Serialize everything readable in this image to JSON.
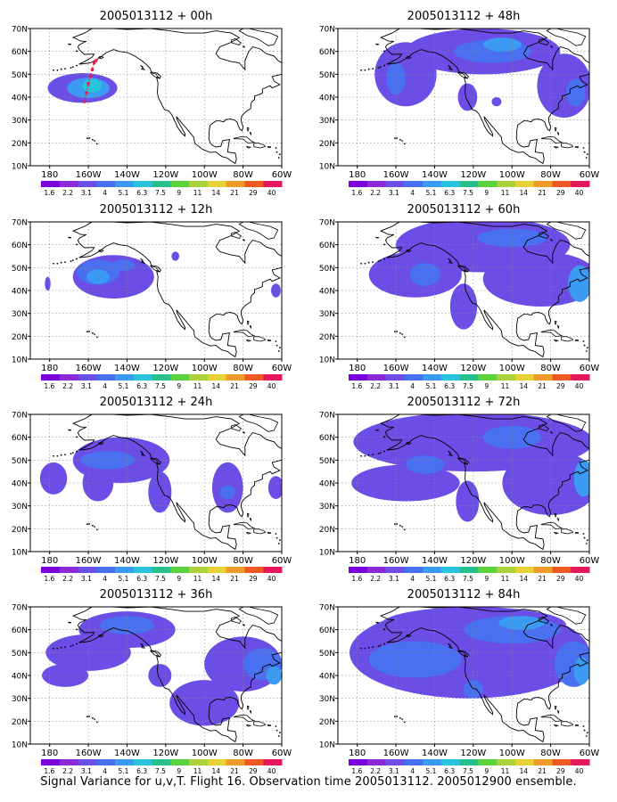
{
  "chart_data": [
    {
      "type": "heatmap",
      "title": "2005013112 + 00h",
      "lat_ticks": [
        "70N",
        "60N",
        "50N",
        "40N",
        "30N",
        "20N",
        "10N"
      ],
      "lon_ticks": [
        "180",
        "160W",
        "140W",
        "120W",
        "100W",
        "80W",
        "60W"
      ],
      "colorbar": [
        "1.6",
        "2.2",
        "3.1",
        "4",
        "5.1",
        "6.3",
        "7.5",
        "9",
        "11",
        "14",
        "21",
        "29",
        "40"
      ],
      "blobs": [
        {
          "lon": -163,
          "lat": 44,
          "rlon": 18,
          "rlat": 6.5,
          "level": 2
        },
        {
          "lon": -160,
          "lat": 44,
          "rlon": 11,
          "rlat": 4.5,
          "level": 4
        },
        {
          "lon": -158,
          "lat": 45,
          "rlon": 5,
          "rlat": 3,
          "level": 5
        }
      ],
      "obs_track": [
        [
          -162,
          38
        ],
        [
          -161,
          42
        ],
        [
          -160,
          46
        ],
        [
          -159,
          49
        ],
        [
          -158,
          52
        ],
        [
          -157,
          55
        ],
        [
          -156,
          56
        ]
      ]
    },
    {
      "type": "heatmap",
      "title": "2005013112 + 12h",
      "lat_ticks": [
        "70N",
        "60N",
        "50N",
        "40N",
        "30N",
        "20N",
        "10N"
      ],
      "lon_ticks": [
        "180",
        "160W",
        "140W",
        "120W",
        "100W",
        "80W",
        "60W"
      ],
      "colorbar": [
        "1.6",
        "2.2",
        "3.1",
        "4",
        "5.1",
        "6.3",
        "7.5",
        "9",
        "11",
        "14",
        "21",
        "29",
        "40"
      ],
      "blobs": [
        {
          "lon": -147,
          "lat": 46,
          "rlon": 21,
          "rlat": 9.5,
          "level": 2
        },
        {
          "lon": -155,
          "lat": 48,
          "rlon": 11,
          "rlat": 5.5,
          "level": 3
        },
        {
          "lon": -155,
          "lat": 46,
          "rlon": 6,
          "rlat": 3.2,
          "level": 4
        },
        {
          "lon": -142,
          "lat": 51,
          "rlon": 6,
          "rlat": 2.5,
          "level": 3
        },
        {
          "lon": -115,
          "lat": 55,
          "rlon": 2,
          "rlat": 2,
          "level": 2
        },
        {
          "lon": -63,
          "lat": 40,
          "rlon": 2.5,
          "rlat": 3,
          "level": 2
        },
        {
          "lon": -181,
          "lat": 43,
          "rlon": 1.5,
          "rlat": 3,
          "level": 2
        }
      ]
    },
    {
      "type": "heatmap",
      "title": "2005013112 + 24h",
      "lat_ticks": [
        "70N",
        "60N",
        "50N",
        "40N",
        "30N",
        "20N",
        "10N"
      ],
      "lon_ticks": [
        "180",
        "160W",
        "140W",
        "120W",
        "100W",
        "80W",
        "60W"
      ],
      "colorbar": [
        "1.6",
        "2.2",
        "3.1",
        "4",
        "5.1",
        "6.3",
        "7.5",
        "9",
        "11",
        "14",
        "21",
        "29",
        "40"
      ],
      "blobs": [
        {
          "lon": -143,
          "lat": 50,
          "rlon": 25,
          "rlat": 10,
          "level": 2
        },
        {
          "lon": -155,
          "lat": 40,
          "rlon": 8,
          "rlat": 8,
          "level": 2
        },
        {
          "lon": -150,
          "lat": 50,
          "rlon": 14,
          "rlat": 4,
          "level": 3
        },
        {
          "lon": -123,
          "lat": 36,
          "rlon": 6,
          "rlat": 9,
          "level": 2
        },
        {
          "lon": -88,
          "lat": 38,
          "rlon": 8,
          "rlat": 11,
          "level": 2
        },
        {
          "lon": -88,
          "lat": 36,
          "rlon": 4,
          "rlat": 3,
          "level": 3
        },
        {
          "lon": -178,
          "lat": 42,
          "rlon": 7,
          "rlat": 7,
          "level": 2
        },
        {
          "lon": -63,
          "lat": 38,
          "rlon": 4,
          "rlat": 5,
          "level": 2
        }
      ]
    },
    {
      "type": "heatmap",
      "title": "2005013112 + 36h",
      "lat_ticks": [
        "70N",
        "60N",
        "50N",
        "40N",
        "30N",
        "20N",
        "10N"
      ],
      "lon_ticks": [
        "180",
        "160W",
        "140W",
        "120W",
        "100W",
        "80W",
        "60W"
      ],
      "colorbar": [
        "1.6",
        "2.2",
        "3.1",
        "4",
        "5.1",
        "6.3",
        "7.5",
        "9",
        "11",
        "14",
        "21",
        "29",
        "40"
      ],
      "blobs": [
        {
          "lon": -140,
          "lat": 60,
          "rlon": 25,
          "rlat": 8,
          "level": 2
        },
        {
          "lon": -160,
          "lat": 50,
          "rlon": 22,
          "rlat": 8,
          "level": 2
        },
        {
          "lon": -172,
          "lat": 40,
          "rlon": 12,
          "rlat": 5,
          "level": 2
        },
        {
          "lon": -80,
          "lat": 45,
          "rlon": 20,
          "rlat": 12,
          "level": 2
        },
        {
          "lon": -100,
          "lat": 28,
          "rlon": 18,
          "rlat": 10,
          "level": 2
        },
        {
          "lon": -140,
          "lat": 62,
          "rlon": 14,
          "rlat": 4,
          "level": 3
        },
        {
          "lon": -70,
          "lat": 45,
          "rlon": 10,
          "rlat": 7,
          "level": 3
        },
        {
          "lon": -64,
          "lat": 40,
          "rlon": 4,
          "rlat": 4,
          "level": 4
        },
        {
          "lon": -123,
          "lat": 40,
          "rlon": 6,
          "rlat": 5,
          "level": 2
        }
      ]
    },
    {
      "type": "heatmap",
      "title": "2005013112 + 48h",
      "lat_ticks": [
        "70N",
        "60N",
        "50N",
        "40N",
        "30N",
        "20N",
        "10N"
      ],
      "lon_ticks": [
        "180",
        "160W",
        "140W",
        "120W",
        "100W",
        "80W",
        "60W"
      ],
      "colorbar": [
        "1.6",
        "2.2",
        "3.1",
        "4",
        "5.1",
        "6.3",
        "7.5",
        "9",
        "11",
        "14",
        "21",
        "29",
        "40"
      ],
      "blobs": [
        {
          "lon": -115,
          "lat": 60,
          "rlon": 40,
          "rlat": 10,
          "level": 2
        },
        {
          "lon": -155,
          "lat": 50,
          "rlon": 16,
          "rlat": 14,
          "level": 2
        },
        {
          "lon": -73,
          "lat": 45,
          "rlon": 14,
          "rlat": 14,
          "level": 2
        },
        {
          "lon": -123,
          "lat": 40,
          "rlon": 5,
          "rlat": 6,
          "level": 2
        },
        {
          "lon": -110,
          "lat": 60,
          "rlon": 20,
          "rlat": 5,
          "level": 3
        },
        {
          "lon": -105,
          "lat": 63,
          "rlon": 10,
          "rlat": 3,
          "level": 4
        },
        {
          "lon": -160,
          "lat": 48,
          "rlon": 5,
          "rlat": 7,
          "level": 3
        },
        {
          "lon": -67,
          "lat": 42,
          "rlon": 5,
          "rlat": 6,
          "level": 3
        },
        {
          "lon": -108,
          "lat": 38,
          "rlon": 2.5,
          "rlat": 2,
          "level": 2
        }
      ]
    },
    {
      "type": "heatmap",
      "title": "2005013112 + 60h",
      "lat_ticks": [
        "70N",
        "60N",
        "50N",
        "40N",
        "30N",
        "20N",
        "10N"
      ],
      "lon_ticks": [
        "180",
        "160W",
        "140W",
        "120W",
        "100W",
        "80W",
        "60W"
      ],
      "colorbar": [
        "1.6",
        "2.2",
        "3.1",
        "4",
        "5.1",
        "6.3",
        "7.5",
        "9",
        "11",
        "14",
        "21",
        "29",
        "40"
      ],
      "blobs": [
        {
          "lon": -115,
          "lat": 60,
          "rlon": 45,
          "rlat": 12,
          "level": 2
        },
        {
          "lon": -150,
          "lat": 47,
          "rlon": 24,
          "rlat": 10,
          "level": 2
        },
        {
          "lon": -85,
          "lat": 45,
          "rlon": 30,
          "rlat": 12,
          "level": 2
        },
        {
          "lon": -125,
          "lat": 33,
          "rlon": 7,
          "rlat": 10,
          "level": 2
        },
        {
          "lon": -145,
          "lat": 47,
          "rlon": 8,
          "rlat": 5,
          "level": 3
        },
        {
          "lon": -100,
          "lat": 63,
          "rlon": 18,
          "rlat": 4,
          "level": 3
        },
        {
          "lon": -65,
          "lat": 43,
          "rlon": 6,
          "rlat": 8,
          "level": 4
        }
      ]
    },
    {
      "type": "heatmap",
      "title": "2005013112 + 72h",
      "lat_ticks": [
        "70N",
        "60N",
        "50N",
        "40N",
        "30N",
        "20N",
        "10N"
      ],
      "lon_ticks": [
        "180",
        "160W",
        "140W",
        "120W",
        "100W",
        "80W",
        "60W"
      ],
      "colorbar": [
        "1.6",
        "2.2",
        "3.1",
        "4",
        "5.1",
        "6.3",
        "7.5",
        "9",
        "11",
        "14",
        "21",
        "29",
        "40"
      ],
      "blobs": [
        {
          "lon": -120,
          "lat": 58,
          "rlon": 62,
          "rlat": 13,
          "level": 2
        },
        {
          "lon": -155,
          "lat": 40,
          "rlon": 28,
          "rlat": 8,
          "level": 2
        },
        {
          "lon": -80,
          "lat": 40,
          "rlon": 25,
          "rlat": 14,
          "level": 2
        },
        {
          "lon": -123,
          "lat": 32,
          "rlon": 6,
          "rlat": 9,
          "level": 2
        },
        {
          "lon": -145,
          "lat": 48,
          "rlon": 10,
          "rlat": 4,
          "level": 3
        },
        {
          "lon": -100,
          "lat": 60,
          "rlon": 15,
          "rlat": 5,
          "level": 3
        },
        {
          "lon": -63,
          "lat": 42,
          "rlon": 5,
          "rlat": 8,
          "level": 4
        }
      ]
    },
    {
      "type": "heatmap",
      "title": "2005013112 + 84h",
      "lat_ticks": [
        "70N",
        "60N",
        "50N",
        "40N",
        "30N",
        "20N",
        "10N"
      ],
      "lon_ticks": [
        "180",
        "160W",
        "140W",
        "120W",
        "100W",
        "80W",
        "60W"
      ],
      "colorbar": [
        "1.6",
        "2.2",
        "3.1",
        "4",
        "5.1",
        "6.3",
        "7.5",
        "9",
        "11",
        "14",
        "21",
        "29",
        "40"
      ],
      "blobs": [
        {
          "lon": -122,
          "lat": 50,
          "rlon": 62,
          "rlat": 20,
          "level": 2
        },
        {
          "lon": -120,
          "lat": 62,
          "rlon": 48,
          "rlat": 8,
          "level": 2
        },
        {
          "lon": -150,
          "lat": 47,
          "rlon": 24,
          "rlat": 8,
          "level": 3
        },
        {
          "lon": -100,
          "lat": 60,
          "rlon": 25,
          "rlat": 6,
          "level": 3
        },
        {
          "lon": -68,
          "lat": 45,
          "rlon": 10,
          "rlat": 10,
          "level": 3
        },
        {
          "lon": -95,
          "lat": 63,
          "rlon": 12,
          "rlat": 3,
          "level": 4
        },
        {
          "lon": -64,
          "lat": 42,
          "rlon": 4,
          "rlat": 6,
          "level": 4
        },
        {
          "lon": -120,
          "lat": 34,
          "rlon": 5,
          "rlat": 4,
          "level": 3
        }
      ]
    }
  ],
  "colorscale": [
    "#7b00dc",
    "#8c2ad8",
    "#6a4ee6",
    "#4870f0",
    "#3b9af2",
    "#29c3dc",
    "#27c08c",
    "#5ad23c",
    "#aad23a",
    "#e6d236",
    "#f09a28",
    "#ec5a22",
    "#e4185a"
  ],
  "caption": "Signal Variance for u,v,T. Flight 16. Observation time 2005013112. 2005012900 ensemble."
}
